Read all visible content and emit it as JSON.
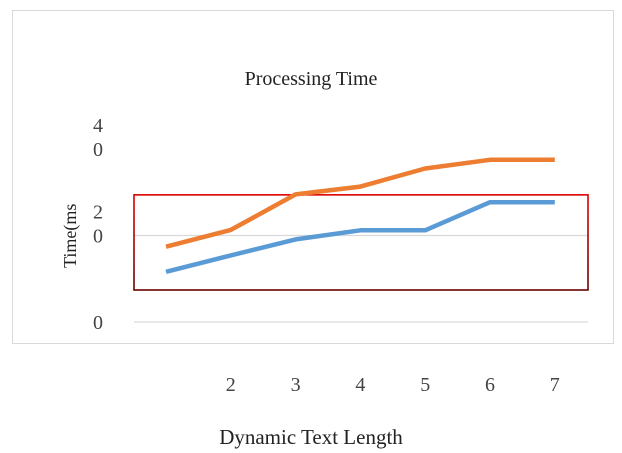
{
  "chart_data": {
    "type": "line",
    "title": "Processing Time",
    "xlabel": "Dynamic Text Length",
    "ylabel": "Time(ms",
    "x": [
      1,
      2,
      3,
      4,
      5,
      6,
      7
    ],
    "x_tick_labels": [
      "2",
      "3",
      "4",
      "5",
      "6",
      "7"
    ],
    "y_tick_labels": [
      {
        "value": 40,
        "lines": [
          "4",
          "0"
        ]
      },
      {
        "value": 20,
        "lines": [
          "2",
          "0"
        ]
      },
      {
        "value": 0,
        "lines": [
          "0"
        ]
      }
    ],
    "ylim": [
      0,
      40
    ],
    "grid": true,
    "legend": "none",
    "highlight_box": {
      "y_range": [
        7.4,
        29.4
      ],
      "color_top": "#e00000",
      "color_bottom": "#6b0000"
    },
    "series": [
      {
        "color": "#ed7d31",
        "values": [
          17.4,
          21.3,
          29.5,
          31.3,
          35.5,
          37.5,
          37.5
        ]
      },
      {
        "color": "#5b9bd5",
        "values": [
          11.6,
          15.4,
          19.1,
          21.2,
          21.2,
          27.7,
          27.7
        ]
      }
    ]
  }
}
